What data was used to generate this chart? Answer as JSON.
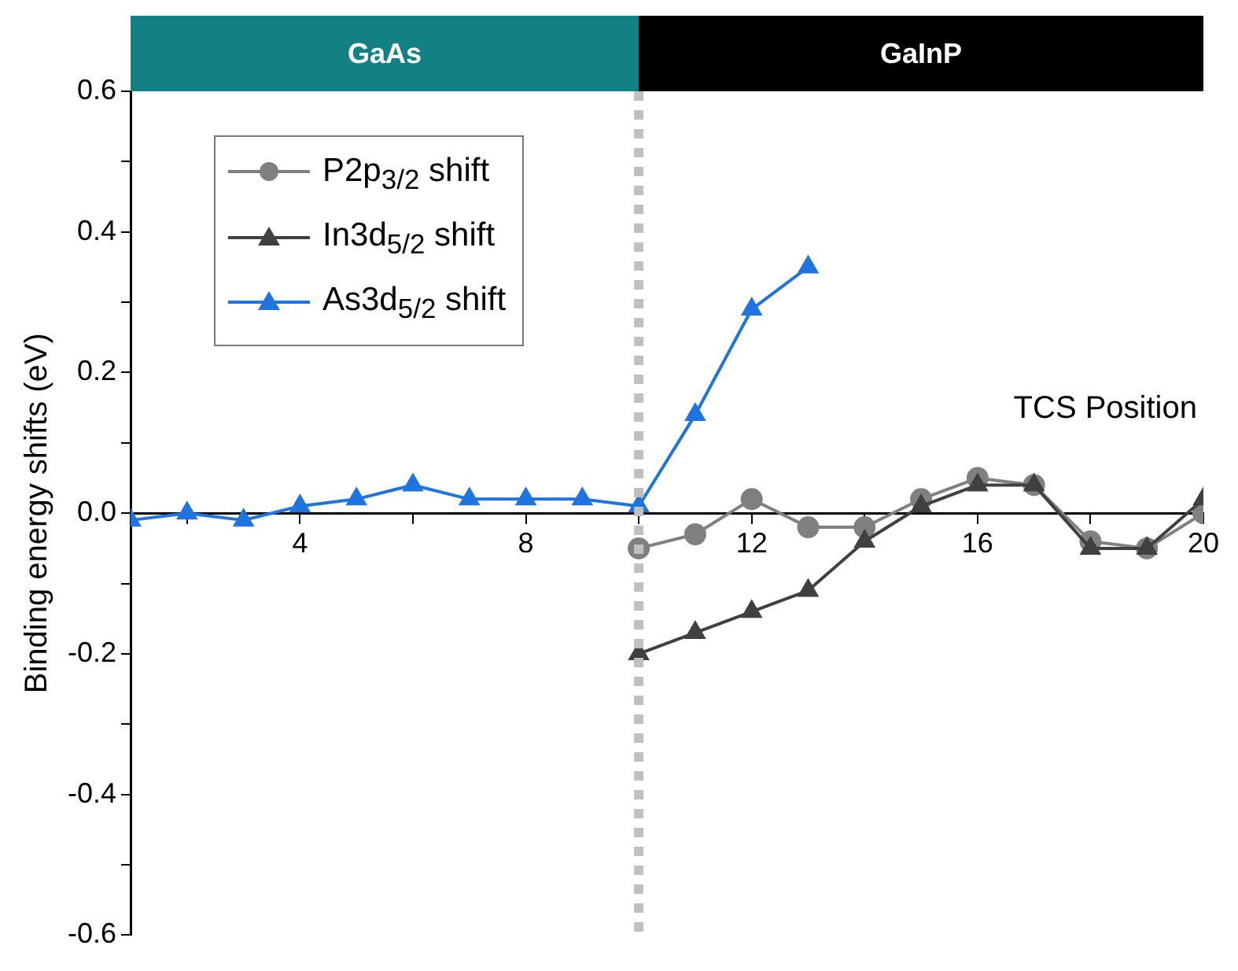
{
  "chart_data": {
    "type": "line",
    "xlabel": "TCS Position",
    "ylabel": "Binding energy shifts (eV)",
    "xlim": [
      1,
      20
    ],
    "xticks": [
      {
        "value": 2,
        "label": null
      },
      4,
      {
        "value": 6,
        "label": null
      },
      8,
      {
        "value": 10,
        "label": null
      },
      12,
      {
        "value": 14,
        "label": null
      },
      16,
      {
        "value": 18,
        "label": null
      },
      20
    ],
    "ylim": [
      -0.6,
      0.6
    ],
    "yticks": [
      {
        "value": -0.6,
        "label": "-0.6"
      },
      {
        "value": -0.5,
        "label": null
      },
      {
        "value": -0.4,
        "label": "-0.4"
      },
      {
        "value": -0.3,
        "label": null
      },
      {
        "value": -0.2,
        "label": "-0.2"
      },
      {
        "value": -0.1,
        "label": null
      },
      {
        "value": 0,
        "label": "0.0"
      },
      {
        "value": 0.1,
        "label": null
      },
      {
        "value": 0.2,
        "label": "0.2"
      },
      {
        "value": 0.3,
        "label": null
      },
      {
        "value": 0.4,
        "label": "0.4"
      },
      {
        "value": 0.5,
        "label": null
      },
      {
        "value": 0.6,
        "label": "0.6"
      }
    ],
    "grid": false,
    "legend": "top left",
    "series": [
      {
        "name": "P2p$_{3/2}$ shift",
        "color": "#808080",
        "marker": "circle",
        "x": [
          10,
          11,
          12,
          13,
          14,
          15,
          16,
          17,
          18,
          19,
          20
        ],
        "values": [
          -0.05,
          -0.03,
          0.02,
          -0.02,
          -0.02,
          0.02,
          0.05,
          0.04,
          -0.04,
          -0.05,
          0.0
        ]
      },
      {
        "name": "In3d$_{5/2}$ shift",
        "color": "#404040",
        "marker": "triangle",
        "x": [
          10,
          11,
          12,
          13,
          14,
          15,
          16,
          17,
          18,
          19,
          20
        ],
        "values": [
          -0.2,
          -0.17,
          -0.14,
          -0.11,
          -0.04,
          0.01,
          0.04,
          0.04,
          -0.05,
          -0.05,
          0.02
        ]
      },
      {
        "name": "As3d$_{5/2}$ shift",
        "color": "#1f74e0",
        "marker": "triangle",
        "x": [
          1,
          2,
          3,
          4,
          5,
          6,
          7,
          8,
          9,
          10,
          11,
          12,
          13
        ],
        "values": [
          -0.01,
          0.0,
          -0.01,
          0.01,
          0.02,
          0.04,
          0.02,
          0.02,
          0.02,
          0.01,
          0.14,
          0.29,
          0.35
        ]
      }
    ],
    "ref_lines": [
      {
        "axis": "x",
        "value": 10,
        "color": "#c0c0c0",
        "line_style": "dotted"
      }
    ],
    "annotations": [
      "GaAs",
      "GaInP"
    ]
  }
}
